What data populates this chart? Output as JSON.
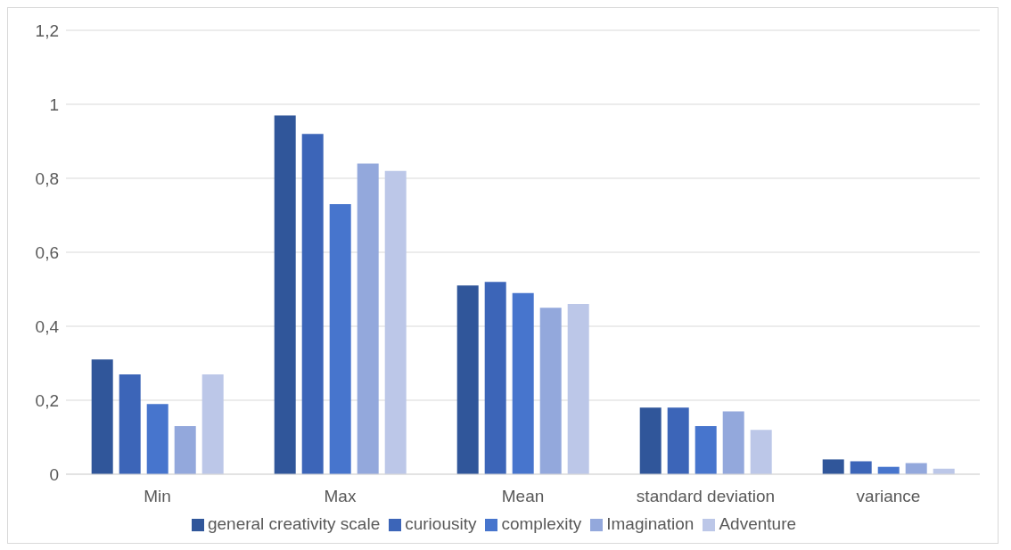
{
  "chart_data": {
    "type": "bar",
    "categories": [
      "Min",
      "Max",
      "Mean",
      "standard deviation",
      "variance"
    ],
    "series": [
      {
        "name": "general creativity scale",
        "color": "#30569a",
        "values": [
          0.31,
          0.97,
          0.51,
          0.18,
          0.04
        ]
      },
      {
        "name": "curiousity",
        "color": "#3c65b8",
        "values": [
          0.27,
          0.92,
          0.52,
          0.18,
          0.035
        ]
      },
      {
        "name": "complexity",
        "color": "#4775cd",
        "values": [
          0.19,
          0.73,
          0.49,
          0.13,
          0.02
        ]
      },
      {
        "name": "Imagination",
        "color": "#93a8dc",
        "values": [
          0.13,
          0.84,
          0.45,
          0.17,
          0.03
        ]
      },
      {
        "name": "Adventure",
        "color": "#bcc7e8",
        "values": [
          0.27,
          0.82,
          0.46,
          0.12,
          0.015
        ]
      }
    ],
    "ylim": [
      0,
      1.2
    ],
    "yticks": [
      0,
      {
        "value": 0.2,
        "label": "0,2"
      },
      {
        "value": 0.4,
        "label": "0,4"
      },
      {
        "value": 0.6,
        "label": "0,6"
      },
      {
        "value": 0.8,
        "label": "0,8"
      },
      1,
      {
        "value": 1.2,
        "label": "1,2"
      }
    ],
    "grid": "y",
    "legend": "bottom"
  }
}
